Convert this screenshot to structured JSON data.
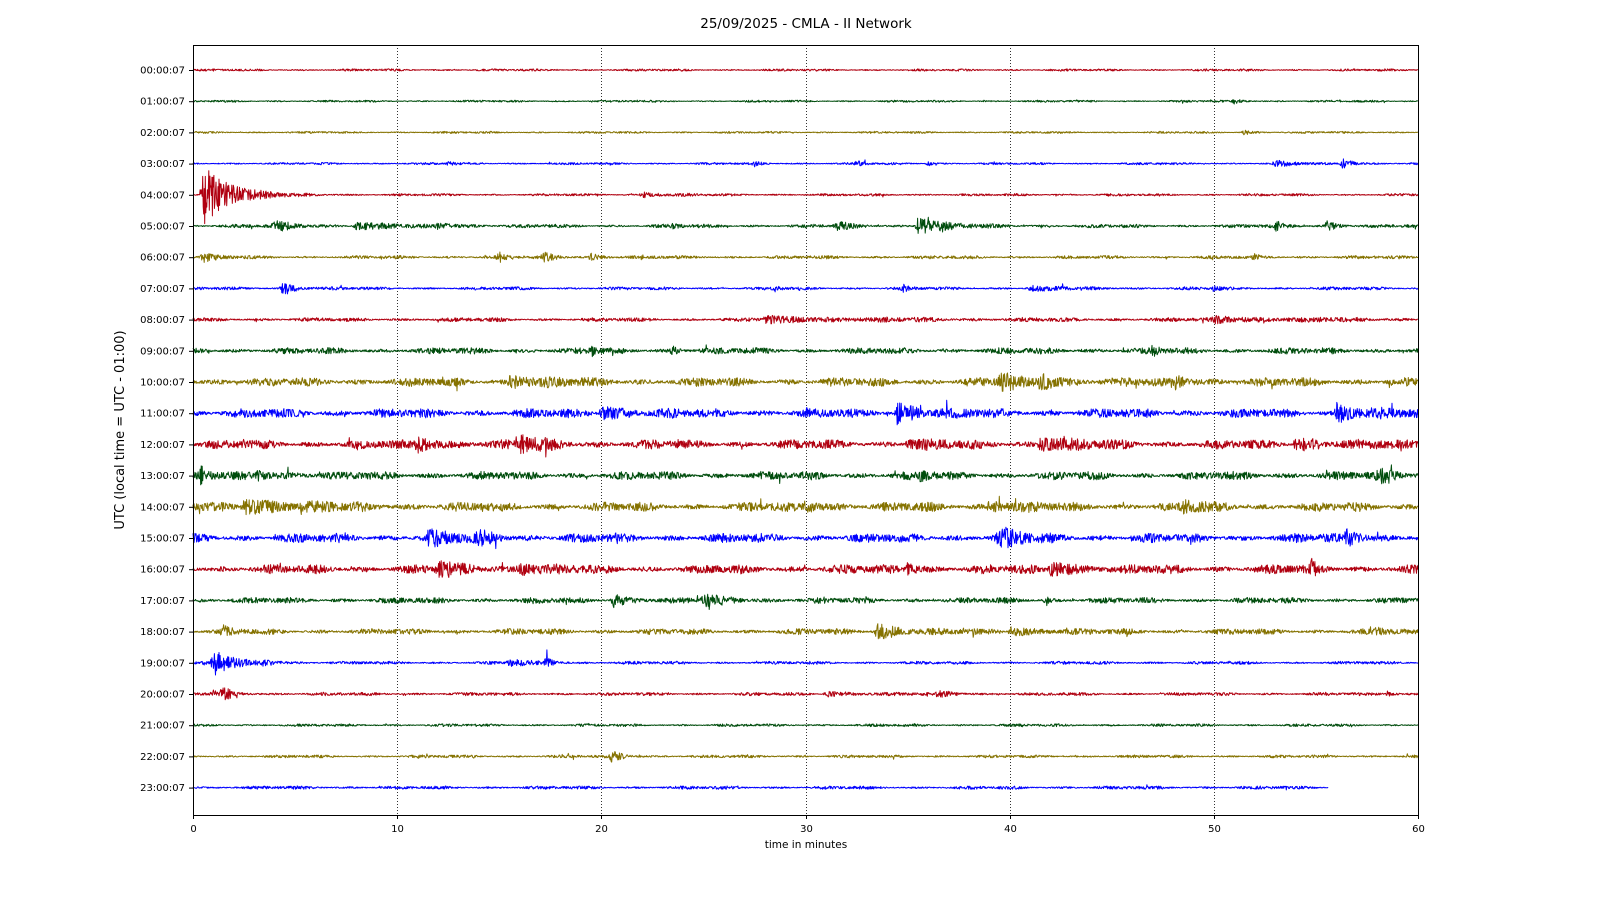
{
  "chart_data": {
    "type": "line",
    "title": "25/09/2025 - CMLA - II Network",
    "xlabel": "time in minutes",
    "ylabel": "UTC (local time = UTC - 01:00)",
    "xlim": [
      0,
      60
    ],
    "xticks": [
      0,
      10,
      20,
      30,
      40,
      50,
      60
    ],
    "grid": "x-dotted",
    "colors": [
      "#b00010",
      "#004d0d",
      "#857200",
      "#0000ff"
    ],
    "series": [
      {
        "label": "00:00:07",
        "color": "#b00010",
        "end_minute": 60,
        "amplitude": 1.1,
        "events": []
      },
      {
        "label": "01:00:07",
        "color": "#004d0d",
        "end_minute": 60,
        "amplitude": 1.0,
        "events": [
          {
            "t": 51,
            "dur": 0.8,
            "amp": 2.5
          }
        ]
      },
      {
        "label": "02:00:07",
        "color": "#857200",
        "end_minute": 60,
        "amplitude": 1.0,
        "events": [
          {
            "t": 51.5,
            "dur": 0.8,
            "amp": 3
          }
        ]
      },
      {
        "label": "03:00:07",
        "color": "#0000ff",
        "end_minute": 60,
        "amplitude": 1.1,
        "events": [
          {
            "t": 12.5,
            "dur": 0.5,
            "amp": 2.5
          },
          {
            "t": 27.5,
            "dur": 0.6,
            "amp": 2.5
          },
          {
            "t": 32.5,
            "dur": 0.6,
            "amp": 3
          },
          {
            "t": 36,
            "dur": 0.5,
            "amp": 3
          },
          {
            "t": 53,
            "dur": 1.5,
            "amp": 4
          },
          {
            "t": 56.3,
            "dur": 1.2,
            "amp": 6
          }
        ]
      },
      {
        "label": "04:00:07",
        "color": "#b00010",
        "end_minute": 60,
        "amplitude": 1.2,
        "events": [
          {
            "t": 0.5,
            "dur": 2.8,
            "amp": 34
          },
          {
            "t": 22,
            "dur": 2.2,
            "amp": 3
          }
        ]
      },
      {
        "label": "05:00:07",
        "color": "#004d0d",
        "end_minute": 60,
        "amplitude": 1.7,
        "events": [
          {
            "t": 4,
            "dur": 2.5,
            "amp": 5
          },
          {
            "t": 8,
            "dur": 3,
            "amp": 4
          },
          {
            "t": 12,
            "dur": 2,
            "amp": 3.5
          },
          {
            "t": 23.5,
            "dur": 0.6,
            "amp": 3
          },
          {
            "t": 31.5,
            "dur": 1.5,
            "amp": 4.5
          },
          {
            "t": 35.5,
            "dur": 2.5,
            "amp": 10
          },
          {
            "t": 53,
            "dur": 1,
            "amp": 5
          },
          {
            "t": 55.5,
            "dur": 1,
            "amp": 6
          }
        ]
      },
      {
        "label": "06:00:07",
        "color": "#857200",
        "end_minute": 60,
        "amplitude": 1.6,
        "events": [
          {
            "t": 0.5,
            "dur": 1,
            "amp": 6
          },
          {
            "t": 15,
            "dur": 0.8,
            "amp": 5
          },
          {
            "t": 17.2,
            "dur": 1.2,
            "amp": 4.5
          },
          {
            "t": 19.5,
            "dur": 1,
            "amp": 4
          },
          {
            "t": 52,
            "dur": 0.6,
            "amp": 2.5
          }
        ]
      },
      {
        "label": "07:00:07",
        "color": "#0000ff",
        "end_minute": 60,
        "amplitude": 1.5,
        "events": [
          {
            "t": 4.4,
            "dur": 1.2,
            "amp": 8
          },
          {
            "t": 28.5,
            "dur": 0.4,
            "amp": 3
          },
          {
            "t": 34.8,
            "dur": 0.4,
            "amp": 4
          },
          {
            "t": 41,
            "dur": 3,
            "amp": 2.5
          },
          {
            "t": 50,
            "dur": 0.6,
            "amp": 3
          }
        ]
      },
      {
        "label": "08:00:07",
        "color": "#b00010",
        "end_minute": 60,
        "amplitude": 1.9,
        "events": [
          {
            "t": 28,
            "dur": 10,
            "amp": 3
          },
          {
            "t": 50,
            "dur": 8,
            "amp": 3
          }
        ]
      },
      {
        "label": "09:00:07",
        "color": "#004d0d",
        "end_minute": 60,
        "amplitude": 3.0,
        "events": [
          {
            "t": 19.5,
            "dur": 0.5,
            "amp": 5
          },
          {
            "t": 23.5,
            "dur": 0.5,
            "amp": 6
          },
          {
            "t": 47,
            "dur": 0.5,
            "amp": 6
          }
        ]
      },
      {
        "label": "10:00:07",
        "color": "#857200",
        "end_minute": 60,
        "amplitude": 4.2,
        "events": [
          {
            "t": 15.5,
            "dur": 3,
            "amp": 7
          },
          {
            "t": 39.5,
            "dur": 3,
            "amp": 8
          },
          {
            "t": 41.5,
            "dur": 2,
            "amp": 8
          },
          {
            "t": 48,
            "dur": 2,
            "amp": 6
          }
        ]
      },
      {
        "label": "11:00:07",
        "color": "#0000ff",
        "end_minute": 60,
        "amplitude": 4.4,
        "events": [
          {
            "t": 20,
            "dur": 3,
            "amp": 7
          },
          {
            "t": 34.5,
            "dur": 2.5,
            "amp": 11
          },
          {
            "t": 56,
            "dur": 2.5,
            "amp": 10
          }
        ]
      },
      {
        "label": "12:00:07",
        "color": "#b00010",
        "end_minute": 60,
        "amplitude": 4.4,
        "events": [
          {
            "t": 11,
            "dur": 2.5,
            "amp": 7
          },
          {
            "t": 16,
            "dur": 2.5,
            "amp": 8
          },
          {
            "t": 35,
            "dur": 2,
            "amp": 6
          },
          {
            "t": 41.5,
            "dur": 3,
            "amp": 8
          },
          {
            "t": 54,
            "dur": 3,
            "amp": 7
          }
        ]
      },
      {
        "label": "13:00:07",
        "color": "#004d0d",
        "end_minute": 60,
        "amplitude": 4.0,
        "events": [
          {
            "t": 0.4,
            "dur": 0.6,
            "amp": 8
          },
          {
            "t": 3,
            "dur": 2.5,
            "amp": 5
          },
          {
            "t": 35.5,
            "dur": 1,
            "amp": 5
          },
          {
            "t": 58,
            "dur": 2,
            "amp": 6
          }
        ]
      },
      {
        "label": "14:00:07",
        "color": "#857200",
        "end_minute": 60,
        "amplitude": 4.4,
        "events": [
          {
            "t": 2.5,
            "dur": 5,
            "amp": 8
          },
          {
            "t": 30,
            "dur": 2,
            "amp": 6
          },
          {
            "t": 39,
            "dur": 2.5,
            "amp": 6
          },
          {
            "t": 48.5,
            "dur": 2,
            "amp": 5
          }
        ]
      },
      {
        "label": "15:00:07",
        "color": "#0000ff",
        "end_minute": 60,
        "amplitude": 4.4,
        "events": [
          {
            "t": 11.5,
            "dur": 2.5,
            "amp": 7
          },
          {
            "t": 14,
            "dur": 1.5,
            "amp": 7
          },
          {
            "t": 39.5,
            "dur": 2,
            "amp": 10
          },
          {
            "t": 56.5,
            "dur": 1.5,
            "amp": 9
          }
        ]
      },
      {
        "label": "16:00:07",
        "color": "#b00010",
        "end_minute": 60,
        "amplitude": 4.4,
        "events": [
          {
            "t": 12,
            "dur": 3,
            "amp": 7
          },
          {
            "t": 16,
            "dur": 2,
            "amp": 7
          },
          {
            "t": 35,
            "dur": 1,
            "amp": 8
          },
          {
            "t": 42,
            "dur": 2.5,
            "amp": 9
          },
          {
            "t": 54.8,
            "dur": 0.4,
            "amp": 8
          }
        ]
      },
      {
        "label": "17:00:07",
        "color": "#004d0d",
        "end_minute": 60,
        "amplitude": 2.8,
        "events": [
          {
            "t": 20.6,
            "dur": 1.5,
            "amp": 7
          },
          {
            "t": 25,
            "dur": 2.5,
            "amp": 5
          },
          {
            "t": 41.8,
            "dur": 0.4,
            "amp": 5
          }
        ]
      },
      {
        "label": "18:00:07",
        "color": "#857200",
        "end_minute": 60,
        "amplitude": 2.8,
        "events": [
          {
            "t": 1.5,
            "dur": 0.6,
            "amp": 6
          },
          {
            "t": 33.5,
            "dur": 2.5,
            "amp": 9
          },
          {
            "t": 40,
            "dur": 3,
            "amp": 5
          },
          {
            "t": 58,
            "dur": 0.6,
            "amp": 5
          }
        ]
      },
      {
        "label": "19:00:07",
        "color": "#0000ff",
        "end_minute": 60,
        "amplitude": 1.5,
        "events": [
          {
            "t": 1,
            "dur": 2,
            "amp": 14
          },
          {
            "t": 3.5,
            "dur": 1,
            "amp": 5
          },
          {
            "t": 15.5,
            "dur": 2,
            "amp": 4
          },
          {
            "t": 17.3,
            "dur": 0.7,
            "amp": 6
          }
        ]
      },
      {
        "label": "20:00:07",
        "color": "#b00010",
        "end_minute": 60,
        "amplitude": 1.6,
        "events": [
          {
            "t": 1,
            "dur": 2,
            "amp": 3
          },
          {
            "t": 1.5,
            "dur": 0.5,
            "amp": 8
          },
          {
            "t": 31,
            "dur": 3,
            "amp": 3
          },
          {
            "t": 36.5,
            "dur": 1.5,
            "amp": 4
          },
          {
            "t": 58.5,
            "dur": 0.6,
            "amp": 3
          }
        ]
      },
      {
        "label": "21:00:07",
        "color": "#004d0d",
        "end_minute": 60,
        "amplitude": 1.3,
        "events": []
      },
      {
        "label": "22:00:07",
        "color": "#857200",
        "end_minute": 60,
        "amplitude": 1.4,
        "events": [
          {
            "t": 20.5,
            "dur": 1.2,
            "amp": 6
          }
        ]
      },
      {
        "label": "23:00:07",
        "color": "#0000ff",
        "end_minute": 55.6,
        "amplitude": 1.6,
        "events": []
      }
    ]
  }
}
